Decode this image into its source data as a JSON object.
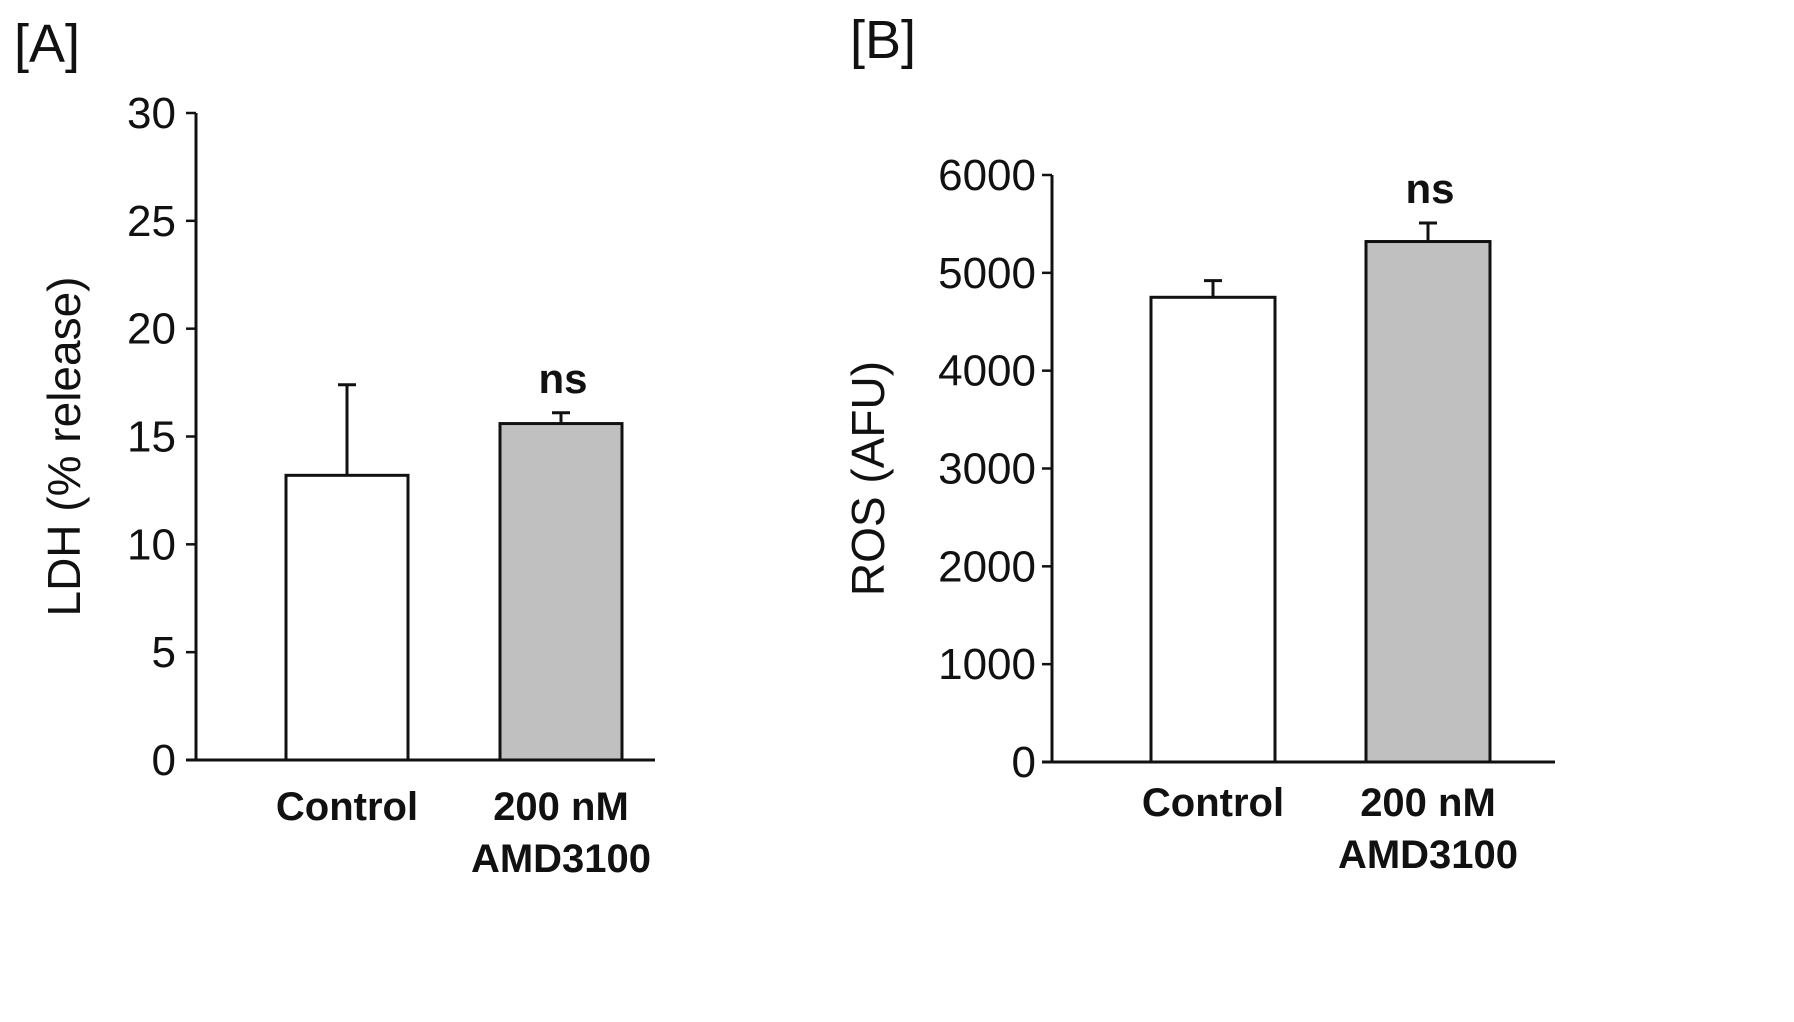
{
  "chart_data": [
    {
      "panel": "[A]",
      "type": "bar",
      "ylabel": "LDH (% release)",
      "ylim": [
        0,
        30
      ],
      "yticks": [
        0,
        5,
        10,
        15,
        20,
        25,
        30
      ],
      "categories": [
        "Control",
        "200 nM AMD3100"
      ],
      "category_lines": [
        [
          "Control"
        ],
        [
          "200 nM",
          "AMD3100"
        ]
      ],
      "values": [
        13.2,
        15.6
      ],
      "errors": [
        4.2,
        0.5
      ],
      "bar_colors": [
        "#ffffff",
        "#c0c0c0"
      ],
      "annotations": [
        "",
        "ns"
      ]
    },
    {
      "panel": "[B]",
      "type": "bar",
      "ylabel": "ROS (AFU)",
      "ylim": [
        0,
        6000
      ],
      "yticks": [
        0,
        1000,
        2000,
        3000,
        4000,
        5000,
        6000
      ],
      "categories": [
        "Control",
        "200 nM AMD3100"
      ],
      "category_lines": [
        [
          "Control"
        ],
        [
          "200 nM",
          "AMD3100"
        ]
      ],
      "values": [
        4750,
        5320
      ],
      "errors": [
        170,
        190
      ],
      "bar_colors": [
        "#ffffff",
        "#c0c0c0"
      ],
      "annotations": [
        "",
        "ns"
      ]
    }
  ]
}
